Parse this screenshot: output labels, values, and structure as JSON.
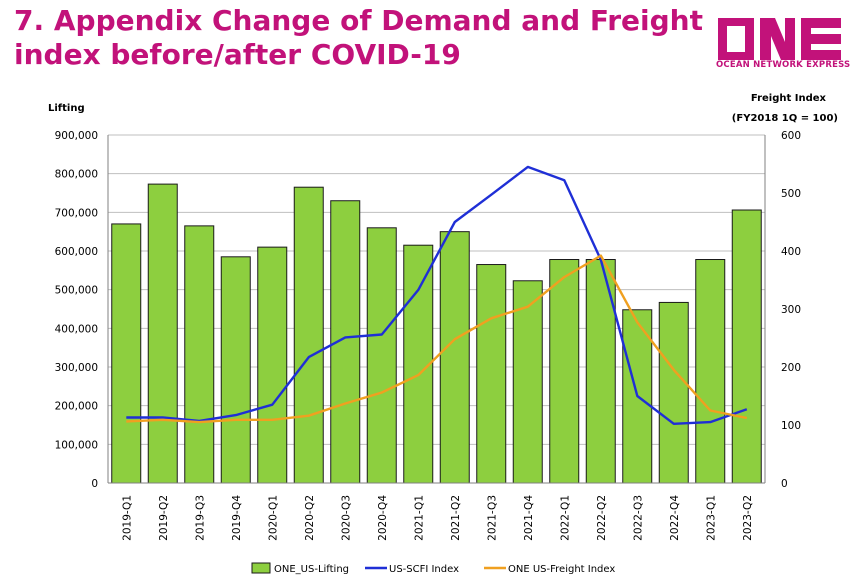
{
  "header": {
    "title_line1": "7. Appendix Change of Demand and Freight",
    "title_line2": "index before/after COVID-19"
  },
  "logo": {
    "text": "ONE",
    "subtitle": "OCEAN NETWORK EXPRESS",
    "color": "#c2127a"
  },
  "chart_data": {
    "type": "bar+line",
    "left_axis_label": "Lifting",
    "right_axis_label": "Freight Index",
    "right_axis_note": "(FY2018 1Q = 100)",
    "left_ylim": [
      0,
      900000
    ],
    "right_ylim": [
      0,
      600
    ],
    "left_ticks": [
      "0",
      "100,000",
      "200,000",
      "300,000",
      "400,000",
      "500,000",
      "600,000",
      "700,000",
      "800,000",
      "900,000"
    ],
    "right_ticks": [
      "0",
      "100",
      "200",
      "300",
      "400",
      "500",
      "600"
    ],
    "categories": [
      "2019-Q1",
      "2019-Q2",
      "2019-Q3",
      "2019-Q4",
      "2020-Q1",
      "2020-Q2",
      "2020-Q3",
      "2020-Q4",
      "2021-Q1",
      "2021-Q2",
      "2021-Q3",
      "2021-Q4",
      "2022-Q1",
      "2022-Q2",
      "2022-Q3",
      "2022-Q4",
      "2023-Q1",
      "2023-Q2"
    ],
    "series": [
      {
        "name": "ONE_US-Lifting",
        "type": "bar",
        "axis": "left",
        "color": "#8dcf3f",
        "values": [
          670000,
          773000,
          665000,
          585000,
          610000,
          765000,
          730000,
          660000,
          615000,
          650000,
          565000,
          523000,
          578000,
          578000,
          448000,
          467000,
          578000,
          706000
        ]
      },
      {
        "name": "US-SCFI Index",
        "type": "line",
        "axis": "right",
        "color": "#1f2fd6",
        "values": [
          113,
          113,
          107,
          117,
          135,
          217,
          251,
          256,
          333,
          450,
          497,
          545,
          522,
          385,
          150,
          102,
          105,
          127
        ]
      },
      {
        "name": "ONE US-Freight Index",
        "type": "line",
        "axis": "right",
        "color": "#f0a020",
        "values": [
          106,
          109,
          105,
          109,
          109,
          116,
          137,
          156,
          186,
          248,
          284,
          304,
          355,
          392,
          277,
          195,
          125,
          112
        ]
      }
    ]
  }
}
